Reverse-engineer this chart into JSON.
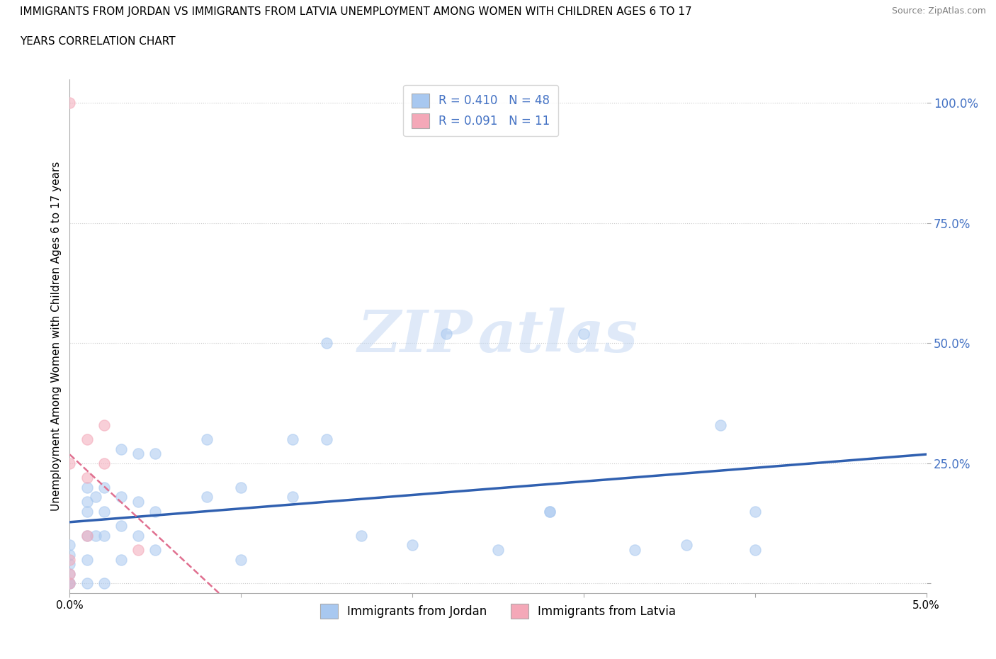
{
  "title_line1": "IMMIGRANTS FROM JORDAN VS IMMIGRANTS FROM LATVIA UNEMPLOYMENT AMONG WOMEN WITH CHILDREN AGES 6 TO 17",
  "title_line2": "YEARS CORRELATION CHART",
  "source": "Source: ZipAtlas.com",
  "ylabel": "Unemployment Among Women with Children Ages 6 to 17 years",
  "xlim": [
    0.0,
    0.05
  ],
  "ylim": [
    -0.02,
    1.05
  ],
  "x_ticks": [
    0.0,
    0.01,
    0.02,
    0.03,
    0.04,
    0.05
  ],
  "x_tick_labels": [
    "0.0%",
    "",
    "",
    "",
    "",
    "5.0%"
  ],
  "y_ticks": [
    0.0,
    0.25,
    0.5,
    0.75,
    1.0
  ],
  "y_tick_labels": [
    "",
    "25.0%",
    "50.0%",
    "75.0%",
    "100.0%"
  ],
  "jordan_R": 0.41,
  "jordan_N": 48,
  "latvia_R": 0.091,
  "latvia_N": 11,
  "jordan_color": "#a8c8f0",
  "latvia_color": "#f4a8b8",
  "jordan_line_color": "#3060b0",
  "latvia_line_color": "#e07090",
  "background_color": "#ffffff",
  "grid_color": "#cccccc",
  "jordan_x": [
    0.0,
    0.0,
    0.0,
    0.0,
    0.0,
    0.0,
    0.001,
    0.001,
    0.001,
    0.001,
    0.001,
    0.001,
    0.0015,
    0.0015,
    0.002,
    0.002,
    0.002,
    0.002,
    0.003,
    0.003,
    0.003,
    0.003,
    0.004,
    0.004,
    0.004,
    0.005,
    0.005,
    0.005,
    0.008,
    0.008,
    0.01,
    0.01,
    0.013,
    0.013,
    0.015,
    0.015,
    0.017,
    0.02,
    0.022,
    0.025,
    0.028,
    0.028,
    0.03,
    0.033,
    0.036,
    0.038,
    0.04,
    0.04
  ],
  "jordan_y": [
    0.0,
    0.0,
    0.02,
    0.04,
    0.06,
    0.08,
    0.0,
    0.05,
    0.1,
    0.15,
    0.17,
    0.2,
    0.1,
    0.18,
    0.0,
    0.1,
    0.15,
    0.2,
    0.05,
    0.12,
    0.18,
    0.28,
    0.1,
    0.17,
    0.27,
    0.07,
    0.15,
    0.27,
    0.18,
    0.3,
    0.05,
    0.2,
    0.18,
    0.3,
    0.3,
    0.5,
    0.1,
    0.08,
    0.52,
    0.07,
    0.15,
    0.15,
    0.52,
    0.07,
    0.08,
    0.33,
    0.07,
    0.15
  ],
  "latvia_x": [
    0.0,
    0.0,
    0.0,
    0.0,
    0.0,
    0.001,
    0.001,
    0.001,
    0.002,
    0.002,
    0.004
  ],
  "latvia_y": [
    0.0,
    0.02,
    0.05,
    0.25,
    1.0,
    0.1,
    0.22,
    0.3,
    0.25,
    0.33,
    0.07
  ]
}
